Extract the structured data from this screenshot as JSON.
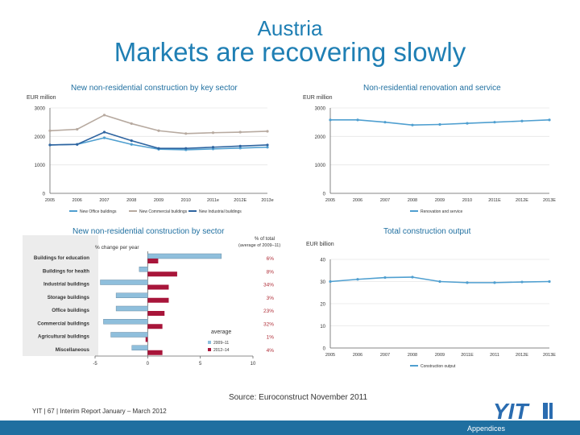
{
  "header": {
    "country": "Austria",
    "title": "Markets are recovering slowly"
  },
  "colors": {
    "brand_blue": "#1f7fb4",
    "office": "#4f9fd0",
    "commercial": "#b7aaa0",
    "industrial": "#2e64a0",
    "renovation": "#4f9fd0",
    "bar_blue": "#8fbfdc",
    "bar_red": "#a8153a"
  },
  "panels": {
    "top_left": {
      "title": "New non-residential construction by key sector",
      "unit": "EUR million"
    },
    "top_right": {
      "title": "Non-residential renovation and service",
      "unit": "EUR million"
    },
    "bottom_left": {
      "title": "New non-residential construction by sector",
      "header": "% change per year",
      "share_header": "% of total",
      "share_subheader": "(average of 2009–11)",
      "legend_title": "average"
    },
    "bottom_right": {
      "title": "Total construction output",
      "unit": "EUR billion"
    }
  },
  "chart_data": [
    {
      "type": "line",
      "x": [
        "2005",
        "2006",
        "2007",
        "2008",
        "2009",
        "2010",
        "2011e",
        "2012E",
        "2013e"
      ],
      "series": [
        {
          "name": "New Office buildings",
          "values": [
            1700,
            1720,
            1950,
            1720,
            1550,
            1530,
            1560,
            1590,
            1620
          ]
        },
        {
          "name": "New Commercial buildings",
          "values": [
            2200,
            2250,
            2750,
            2450,
            2200,
            2100,
            2130,
            2150,
            2180
          ]
        },
        {
          "name": "New Industrial buildings",
          "values": [
            1700,
            1720,
            2150,
            1850,
            1580,
            1580,
            1620,
            1660,
            1700
          ]
        }
      ],
      "yticks": [
        0,
        1000,
        2000,
        3000
      ],
      "ylim": [
        0,
        3000
      ],
      "legend": "bottom"
    },
    {
      "type": "line",
      "x": [
        "2005",
        "2006",
        "2007",
        "2008",
        "2009",
        "2010",
        "2011E",
        "2012E",
        "2013E"
      ],
      "series": [
        {
          "name": "Renovation and service",
          "values": [
            2580,
            2580,
            2500,
            2400,
            2420,
            2460,
            2500,
            2540,
            2580
          ]
        }
      ],
      "yticks": [
        0,
        1000,
        2000,
        3000
      ],
      "ylim": [
        0,
        3000
      ],
      "legend": "bottom"
    },
    {
      "type": "bar",
      "categories": [
        "Buildings for education",
        "Buildings for health",
        "Industrial buildings",
        "Storage buildings",
        "Office buildings",
        "Commercial buildings",
        "Agricultural buildings",
        "Miscellaneous"
      ],
      "series": [
        {
          "name": "2009–11",
          "values": [
            7.0,
            -0.8,
            -4.5,
            -3.0,
            -3.0,
            -4.2,
            -3.5,
            -1.5
          ]
        },
        {
          "name": "2012–14",
          "values": [
            1.0,
            2.8,
            2.0,
            2.0,
            1.6,
            1.4,
            -0.2,
            1.4
          ]
        }
      ],
      "shares": [
        "6%",
        "8%",
        "34%",
        "3%",
        "23%",
        "32%",
        "1%",
        "4%"
      ],
      "xticks": [
        -5,
        0,
        5,
        10
      ],
      "xlim": [
        -5,
        10
      ],
      "legend": "bottom-right"
    },
    {
      "type": "line",
      "x": [
        "2005",
        "2006",
        "2007",
        "2008",
        "2009",
        "2011E",
        "2011",
        "2012E",
        "2013E"
      ],
      "series": [
        {
          "name": "Construction output",
          "values": [
            30,
            31,
            31.8,
            32,
            30,
            29.5,
            29.5,
            29.8,
            30
          ]
        }
      ],
      "yticks": [
        0,
        10,
        20,
        30,
        40
      ],
      "ylim": [
        0,
        40
      ],
      "legend": "bottom"
    }
  ],
  "footer": {
    "source": "Source: Euroconstruct November 2011",
    "text": "YIT  |  67  |  Interim Report January – March 2012",
    "appendices": "Appendices",
    "logo": "YIT"
  }
}
